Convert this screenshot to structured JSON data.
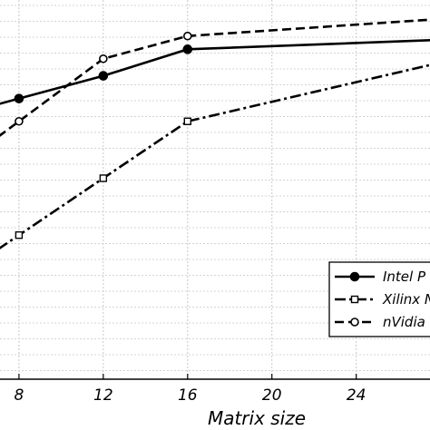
{
  "chart_data": {
    "type": "line",
    "xlabel": "Matrix size",
    "ylabel": "",
    "x": [
      8,
      12,
      16,
      28
    ],
    "xticks": [
      8,
      12,
      16,
      20,
      24
    ],
    "xlim": [
      7.1,
      27.5
    ],
    "ylim": [
      0,
      10
    ],
    "grid": true,
    "legend_position": "bottom-right",
    "series": [
      {
        "name": "Intel P",
        "style": "solid",
        "marker": "filled-circle",
        "values": [
          7.4,
          8.0,
          8.7,
          8.95
        ]
      },
      {
        "name": "Xilinx N",
        "style": "dash-dot",
        "marker": "open-square",
        "values": [
          3.8,
          5.3,
          6.8,
          8.35
        ]
      },
      {
        "name": "nVidia",
        "style": "dashed",
        "marker": "open-circle",
        "values": [
          6.8,
          8.45,
          9.05,
          9.5
        ]
      }
    ]
  }
}
